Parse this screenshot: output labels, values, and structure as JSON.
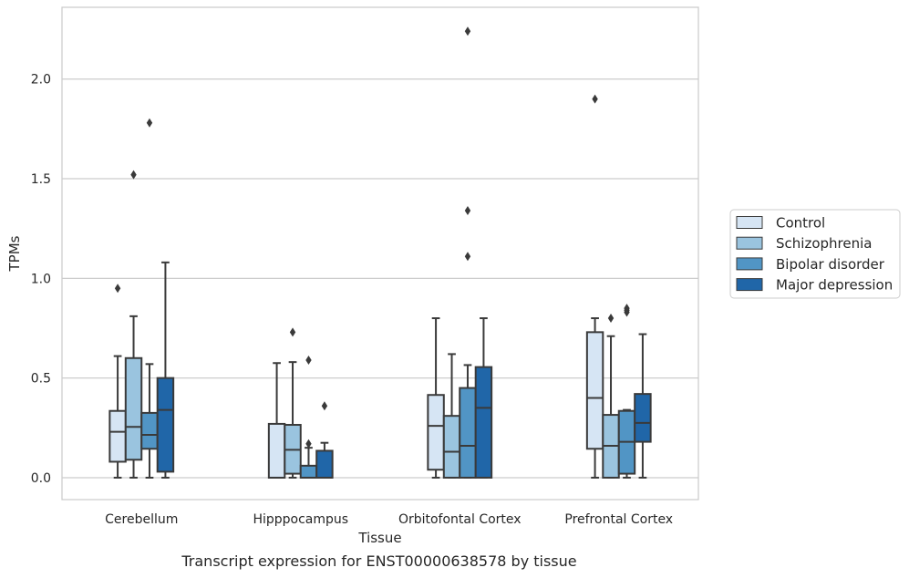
{
  "caption": "Transcript expression for ENST00000638578 by tissue",
  "chart_data": {
    "type": "box",
    "xlabel": "Tissue",
    "ylabel": "TPMs",
    "ylim": [
      -0.11,
      2.36
    ],
    "yticks": [
      0.0,
      0.5,
      1.0,
      1.5,
      2.0
    ],
    "ytick_labels": [
      "0.0",
      "0.5",
      "1.0",
      "1.5",
      "2.0"
    ],
    "grid": "horizontal",
    "legend_position": "right",
    "categories": [
      "Cerebellum",
      "Hipppocampus",
      "Orbitofontal Cortex",
      "Prefrontal Cortex"
    ],
    "series": [
      {
        "name": "Control",
        "color": "#d6e5f4",
        "boxes": [
          {
            "whislo": 0.0,
            "q1": 0.08,
            "med": 0.23,
            "q3": 0.335,
            "whishi": 0.61,
            "fliers": [
              0.95
            ]
          },
          {
            "whislo": 0.0,
            "q1": 0.0,
            "med": 0.0,
            "q3": 0.27,
            "whishi": 0.575,
            "fliers": []
          },
          {
            "whislo": 0.0,
            "q1": 0.04,
            "med": 0.26,
            "q3": 0.415,
            "whishi": 0.8,
            "fliers": []
          },
          {
            "whislo": 0.0,
            "q1": 0.145,
            "med": 0.4,
            "q3": 0.73,
            "whishi": 0.8,
            "fliers": [
              1.9
            ]
          }
        ]
      },
      {
        "name": "Schizophrenia",
        "color": "#9ac4df",
        "boxes": [
          {
            "whislo": 0.0,
            "q1": 0.09,
            "med": 0.255,
            "q3": 0.6,
            "whishi": 0.81,
            "fliers": [
              1.52
            ]
          },
          {
            "whislo": 0.0,
            "q1": 0.02,
            "med": 0.14,
            "q3": 0.265,
            "whishi": 0.58,
            "fliers": [
              0.73
            ]
          },
          {
            "whislo": 0.0,
            "q1": 0.0,
            "med": 0.13,
            "q3": 0.31,
            "whishi": 0.62,
            "fliers": []
          },
          {
            "whislo": 0.0,
            "q1": 0.0,
            "med": 0.16,
            "q3": 0.315,
            "whishi": 0.71,
            "fliers": [
              0.8
            ]
          }
        ]
      },
      {
        "name": "Bipolar disorder",
        "color": "#5195c5",
        "boxes": [
          {
            "whislo": 0.0,
            "q1": 0.145,
            "med": 0.215,
            "q3": 0.325,
            "whishi": 0.57,
            "fliers": [
              1.78
            ]
          },
          {
            "whislo": 0.0,
            "q1": 0.0,
            "med": 0.0,
            "q3": 0.06,
            "whishi": 0.15,
            "fliers": [
              0.17,
              0.59
            ]
          },
          {
            "whislo": 0.0,
            "q1": 0.0,
            "med": 0.16,
            "q3": 0.45,
            "whishi": 0.565,
            "fliers": [
              1.11,
              1.34,
              2.24
            ]
          },
          {
            "whislo": 0.0,
            "q1": 0.02,
            "med": 0.18,
            "q3": 0.335,
            "whishi": 0.34,
            "fliers": [
              0.83,
              0.84,
              0.85
            ]
          }
        ]
      },
      {
        "name": "Major depression",
        "color": "#2066a8",
        "boxes": [
          {
            "whislo": 0.0,
            "q1": 0.03,
            "med": 0.34,
            "q3": 0.5,
            "whishi": 1.08,
            "fliers": []
          },
          {
            "whislo": 0.0,
            "q1": 0.0,
            "med": 0.0,
            "q3": 0.135,
            "whishi": 0.175,
            "fliers": [
              0.36
            ]
          },
          {
            "whislo": 0.0,
            "q1": 0.0,
            "med": 0.35,
            "q3": 0.555,
            "whishi": 0.8,
            "fliers": []
          },
          {
            "whislo": 0.0,
            "q1": 0.18,
            "med": 0.275,
            "q3": 0.42,
            "whishi": 0.72,
            "fliers": []
          }
        ]
      }
    ]
  }
}
